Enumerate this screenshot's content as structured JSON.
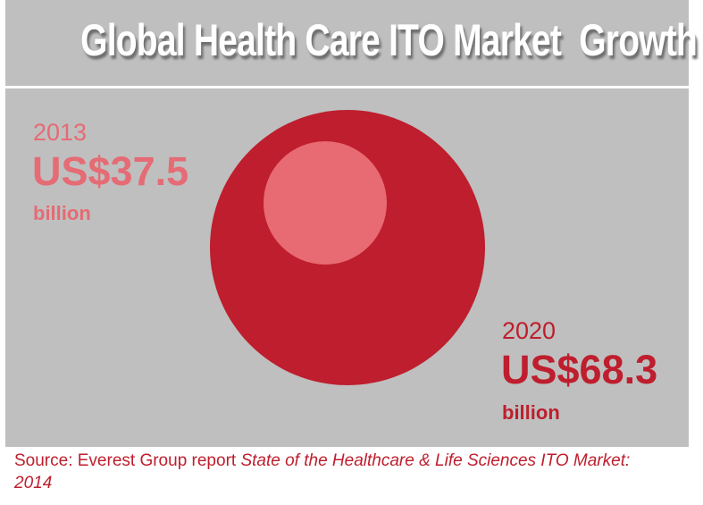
{
  "title": "Global Health Care ITO Market  Growth",
  "chart_data": {
    "type": "bubble",
    "title": "Global Health Care ITO Market  Growth",
    "series": [
      {
        "year": "2013",
        "value": 37.5,
        "label": "US$37.5",
        "unit": "billion",
        "color": "#e86a72"
      },
      {
        "year": "2020",
        "value": 68.3,
        "label": "US$68.3",
        "unit": "billion",
        "color": "#be1e2d"
      }
    ]
  },
  "source": {
    "prefix": "Source: Everest Group report ",
    "italic": "State of the Healthcare & Life Sciences ITO Market: 2014"
  },
  "colors": {
    "background": "#bfbfbf",
    "accent_dark": "#be1e2d",
    "accent_light": "#e86a72"
  }
}
